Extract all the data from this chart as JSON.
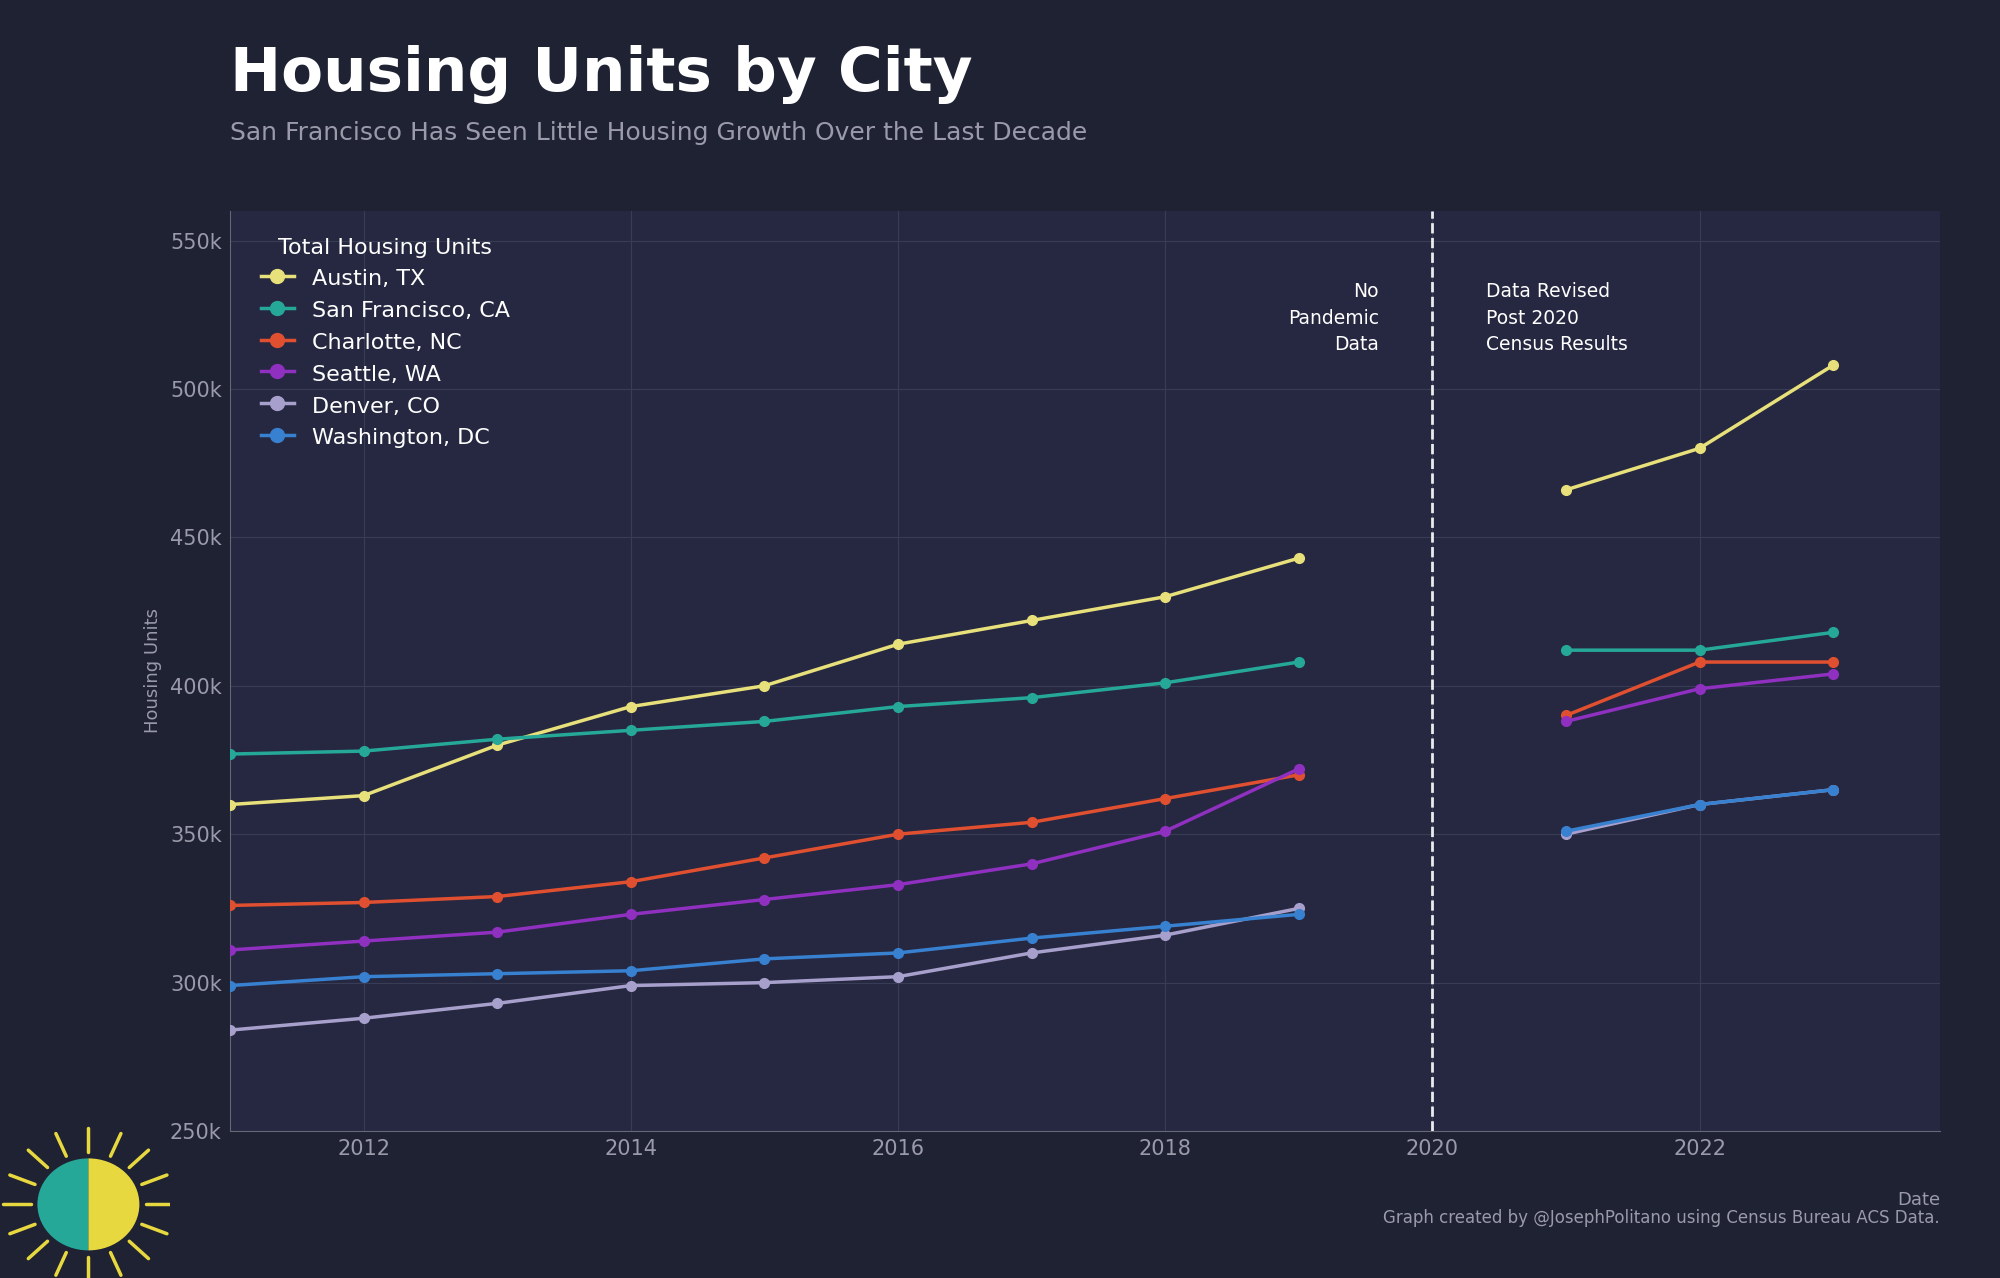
{
  "title": "Housing Units by City",
  "subtitle": "San Francisco Has Seen Little Housing Growth Over the Last Decade",
  "ylabel": "Housing Units",
  "xlabel": "Date",
  "bg_color": "#1e2232",
  "plot_bg_color": "#252840",
  "grid_color": "#383d55",
  "text_color": "#ffffff",
  "subtitle_color": "#9a9aaa",
  "tick_color": "#9a9aaa",
  "legend_title": "Total Housing Units",
  "annotation_no_pandemic": "No\nPandemic\nData",
  "annotation_data_revised": "Data Revised\nPost 2020\nCensus Results",
  "footer": "Graph created by @JosephPolitano using Census Bureau ACS Data.",
  "series": [
    {
      "label": "Austin, TX",
      "color": "#e8e07a",
      "years_pre": [
        2011,
        2012,
        2013,
        2014,
        2015,
        2016,
        2017,
        2018,
        2019
      ],
      "values_pre": [
        360000,
        363000,
        380000,
        393000,
        400000,
        414000,
        422000,
        430000,
        443000
      ],
      "years_post": [
        2021,
        2022,
        2023
      ],
      "values_post": [
        466000,
        480000,
        508000
      ]
    },
    {
      "label": "San Francisco, CA",
      "color": "#26a898",
      "years_pre": [
        2011,
        2012,
        2013,
        2014,
        2015,
        2016,
        2017,
        2018,
        2019
      ],
      "values_pre": [
        377000,
        378000,
        382000,
        385000,
        388000,
        393000,
        396000,
        401000,
        408000
      ],
      "years_post": [
        2021,
        2022,
        2023
      ],
      "values_post": [
        412000,
        412000,
        418000
      ]
    },
    {
      "label": "Charlotte, NC",
      "color": "#e05030",
      "years_pre": [
        2011,
        2012,
        2013,
        2014,
        2015,
        2016,
        2017,
        2018,
        2019
      ],
      "values_pre": [
        326000,
        327000,
        329000,
        334000,
        342000,
        350000,
        354000,
        362000,
        370000
      ],
      "years_post": [
        2021,
        2022,
        2023
      ],
      "values_post": [
        390000,
        408000,
        408000
      ]
    },
    {
      "label": "Seattle, WA",
      "color": "#9030c0",
      "years_pre": [
        2011,
        2012,
        2013,
        2014,
        2015,
        2016,
        2017,
        2018,
        2019
      ],
      "values_pre": [
        311000,
        314000,
        317000,
        323000,
        328000,
        333000,
        340000,
        351000,
        372000
      ],
      "years_post": [
        2021,
        2022,
        2023
      ],
      "values_post": [
        388000,
        399000,
        404000
      ]
    },
    {
      "label": "Denver, CO",
      "color": "#a8a0cc",
      "years_pre": [
        2011,
        2012,
        2013,
        2014,
        2015,
        2016,
        2017,
        2018,
        2019
      ],
      "values_pre": [
        284000,
        288000,
        293000,
        299000,
        300000,
        302000,
        310000,
        316000,
        325000
      ],
      "years_post": [
        2021,
        2022,
        2023
      ],
      "values_post": [
        350000,
        360000,
        365000
      ]
    },
    {
      "label": "Washington, DC",
      "color": "#3880d0",
      "years_pre": [
        2011,
        2012,
        2013,
        2014,
        2015,
        2016,
        2017,
        2018,
        2019
      ],
      "values_pre": [
        299000,
        302000,
        303000,
        304000,
        308000,
        310000,
        315000,
        319000,
        323000
      ],
      "years_post": [
        2021,
        2022,
        2023
      ],
      "values_post": [
        351000,
        360000,
        365000
      ]
    }
  ],
  "ylim": [
    250000,
    560000
  ],
  "yticks": [
    250000,
    300000,
    350000,
    400000,
    450000,
    500000,
    550000
  ],
  "ytick_labels": [
    "250k",
    "300k",
    "350k",
    "400k",
    "450k",
    "500k",
    "550k"
  ],
  "xticks": [
    2012,
    2014,
    2016,
    2018,
    2020,
    2022
  ],
  "dashed_line_x": 2020
}
